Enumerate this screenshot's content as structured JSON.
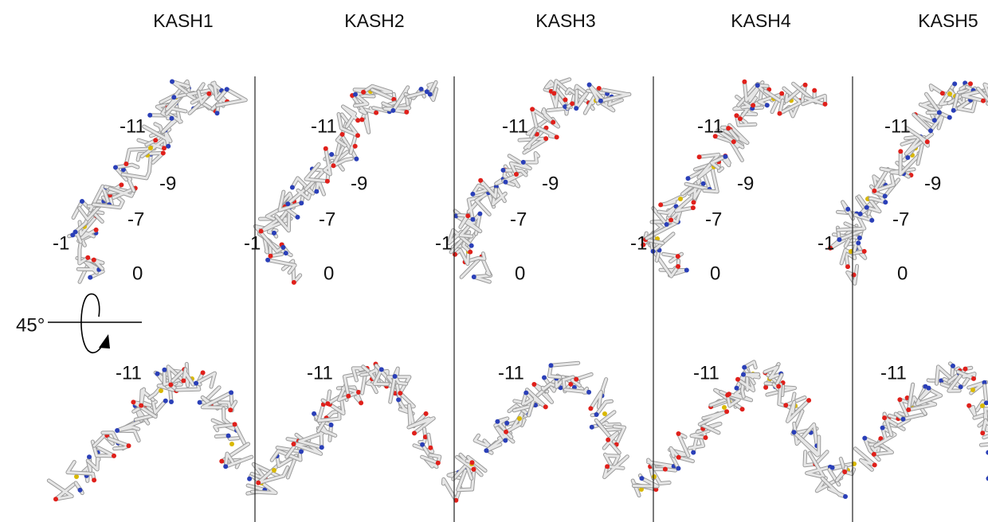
{
  "panels": [
    {
      "title": "KASH1",
      "top_labels": [
        "-11",
        "-9",
        "-7",
        "-1",
        "0"
      ],
      "bottom_labels": [
        "-11"
      ]
    },
    {
      "title": "KASH2",
      "top_labels": [
        "-11",
        "-9",
        "-7",
        "-1",
        "0"
      ],
      "bottom_labels": [
        "-11"
      ]
    },
    {
      "title": "KASH3",
      "top_labels": [
        "-11",
        "-9",
        "-7",
        "-1",
        "0"
      ],
      "bottom_labels": [
        "-11"
      ]
    },
    {
      "title": "KASH4",
      "top_labels": [
        "-11",
        "-9",
        "-7",
        "-1",
        "0"
      ],
      "bottom_labels": [
        "-11"
      ]
    },
    {
      "title": "KASH5",
      "top_labels": [
        "-11",
        "-9",
        "-7",
        "-1",
        "0"
      ],
      "bottom_labels": [
        "-11"
      ]
    }
  ],
  "rotation": {
    "label": "45°"
  }
}
